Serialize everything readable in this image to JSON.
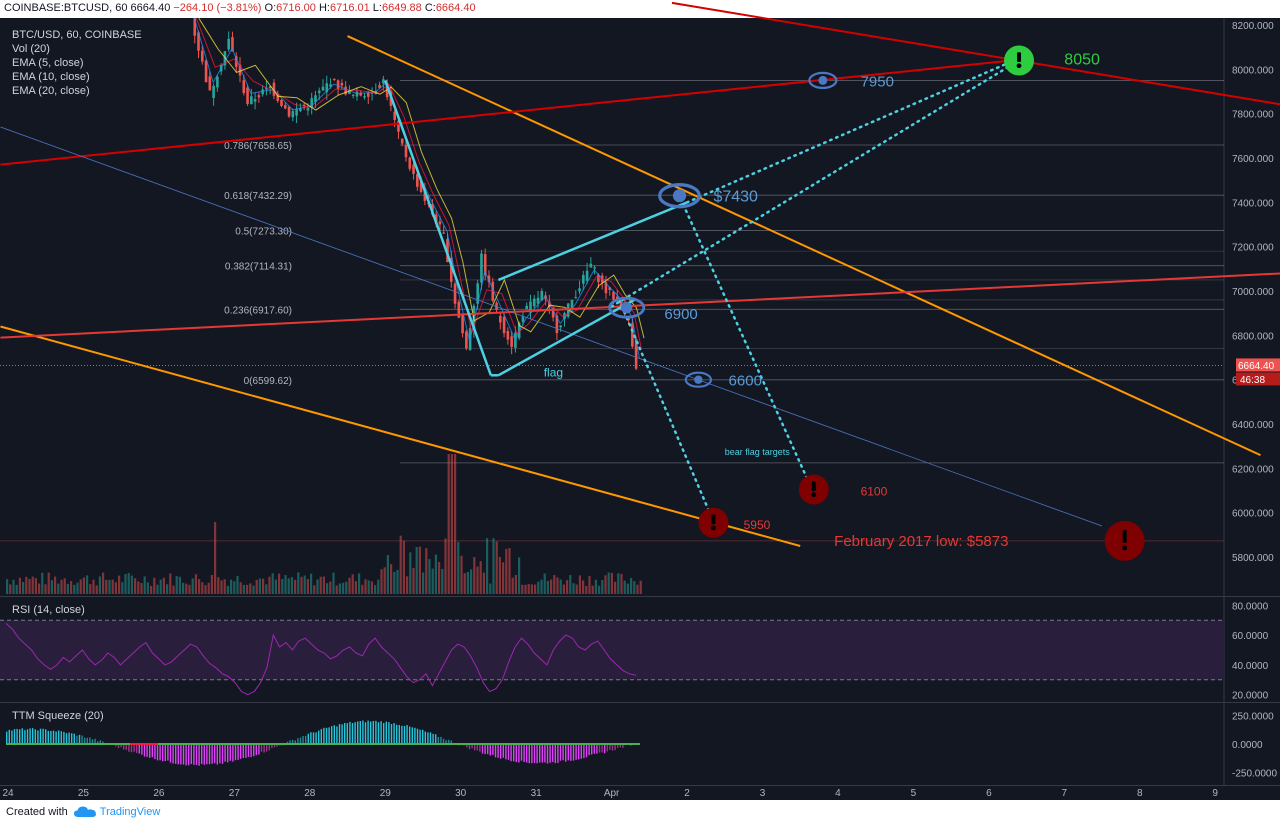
{
  "header": {
    "symbol": "COINBASE:BTCUSD, 60",
    "change": "−264.10 (−3.81%)",
    "o_label": "O:",
    "o_value": "6716.00",
    "h_label": "H:",
    "h_value": "6716.01",
    "l_label": "L:",
    "l_value": "6649.88",
    "c_label": "C:",
    "c_value": "6664.40",
    "last": "6664.40"
  },
  "legend": [
    "BTC/USD, 60, COINBASE",
    "Vol (20)",
    "EMA (5, close)",
    "EMA (10, close)",
    "EMA (20, close)"
  ],
  "footer": {
    "created_with": "Created with",
    "brand": "TradingView",
    "brand_icon": "tradingview-cloud-icon"
  },
  "colors": {
    "background": "#131722",
    "text": "#b2b5be",
    "bull": "#26a69a",
    "bear": "#ef5350",
    "orange": "#ff9800",
    "red_line": "#d50000",
    "cyan": "#4dd0e1",
    "blue_label": "#5b9bd5",
    "green_target": "#2ecc40",
    "rsi_line": "#9c27b0"
  },
  "chart_data": [
    {
      "type": "candlestick",
      "title": "BTC/USD, 60, COINBASE",
      "price_axis": {
        "ticks": [
          "8200.000",
          "8000.000",
          "7800.000",
          "7600.000",
          "7400.000",
          "7200.000",
          "7000.000",
          "6800.000",
          "6600.000",
          "6400.000",
          "6200.000",
          "6000.000",
          "5800.000"
        ],
        "last_price_label": "6664.40",
        "countdown_label": "46:38",
        "range": [
          5700,
          8250
        ]
      },
      "time_axis": {
        "ticks": [
          "24",
          "25",
          "26",
          "27",
          "28",
          "29",
          "30",
          "31",
          "Apr",
          "2",
          "3",
          "4",
          "5",
          "6",
          "7",
          "8",
          "9"
        ]
      },
      "price_path": [
        {
          "day": 26.45,
          "price": 8230
        },
        {
          "day": 26.7,
          "price": 7890
        },
        {
          "day": 26.95,
          "price": 8130
        },
        {
          "day": 27.2,
          "price": 7850
        },
        {
          "day": 27.5,
          "price": 7920
        },
        {
          "day": 27.75,
          "price": 7800
        },
        {
          "day": 28.0,
          "price": 7840
        },
        {
          "day": 28.3,
          "price": 7950
        },
        {
          "day": 28.6,
          "price": 7880
        },
        {
          "day": 28.85,
          "price": 7900
        },
        {
          "day": 29.0,
          "price": 7950
        },
        {
          "day": 29.2,
          "price": 7700
        },
        {
          "day": 29.4,
          "price": 7520
        },
        {
          "day": 29.6,
          "price": 7380
        },
        {
          "day": 29.8,
          "price": 7250
        },
        {
          "day": 29.95,
          "price": 6950
        },
        {
          "day": 30.1,
          "price": 6740
        },
        {
          "day": 30.3,
          "price": 7150
        },
        {
          "day": 30.5,
          "price": 6900
        },
        {
          "day": 30.7,
          "price": 6760
        },
        {
          "day": 30.85,
          "price": 6900
        },
        {
          "day": 31.1,
          "price": 6990
        },
        {
          "day": 31.3,
          "price": 6830
        },
        {
          "day": 31.5,
          "price": 6960
        },
        {
          "day": 31.75,
          "price": 7120
        },
        {
          "day": 31.95,
          "price": 7000
        },
        {
          "day": 32.1,
          "price": 6960
        },
        {
          "day": 32.25,
          "price": 6870
        },
        {
          "day": 32.35,
          "price": 6664
        }
      ],
      "fibonacci": [
        {
          "label": "0.786(7658.65)",
          "price": 7658.65
        },
        {
          "label": "0.618(7432.29)",
          "price": 7432.29
        },
        {
          "label": "0.5(7273.30)",
          "price": 7273.3
        },
        {
          "label": "0.382(7114.31)",
          "price": 7114.31
        },
        {
          "label": "0.236(6917.60)",
          "price": 6917.6
        },
        {
          "label": "0(6599.62)",
          "price": 6599.62
        }
      ],
      "horizontal_levels": [
        7950,
        6225,
        5873
      ],
      "trendlines": [
        {
          "name": "orange-upper",
          "from": {
            "day": 28.5,
            "price": 8150
          },
          "to": {
            "day": 9.6,
            "price": 6260
          }
        },
        {
          "name": "orange-lower",
          "from": {
            "day": 23.9,
            "price": 6840
          },
          "to": {
            "day": 3.5,
            "price": 5850
          }
        },
        {
          "name": "red-rising-upper",
          "from": {
            "day": 23.9,
            "price": 7570
          },
          "to": {
            "day": 6.3,
            "price": 8040
          }
        },
        {
          "name": "red-falling-upper",
          "from": {
            "day": 1.8,
            "price": 8300
          },
          "to": {
            "day": 9.9,
            "price": 7840
          }
        },
        {
          "name": "red-rising-lower",
          "from": {
            "day": 23.9,
            "price": 6790
          },
          "to": {
            "day": 9.9,
            "price": 7080
          }
        },
        {
          "name": "blue-thin",
          "from": {
            "day": 23.9,
            "price": 7740
          },
          "to": {
            "day": 7.5,
            "price": 5940
          }
        }
      ],
      "flag": {
        "label": "flag",
        "pole": [
          {
            "day": 29.0,
            "price": 7950
          },
          {
            "day": 30.4,
            "price": 6620
          }
        ],
        "upper": [
          {
            "day": 30.5,
            "price": 7050
          },
          {
            "day": 2.0,
            "price": 7400
          }
        ],
        "lower": [
          {
            "day": 30.5,
            "price": 6620
          },
          {
            "day": 32.3,
            "price": 6960
          }
        ]
      },
      "annotations": [
        {
          "text": "7950",
          "price": 7950,
          "kind": "eye"
        },
        {
          "text": "$7430",
          "price": 7430,
          "kind": "eye"
        },
        {
          "text": "6900",
          "price": 6900,
          "kind": "eye"
        },
        {
          "text": "6600",
          "price": 6600,
          "kind": "eye"
        },
        {
          "text": "8050",
          "price": 8050,
          "kind": "target-up"
        },
        {
          "text": "6100",
          "price": 6100,
          "kind": "target-down"
        },
        {
          "text": "5950",
          "price": 5950,
          "kind": "target-down"
        },
        {
          "text": "February 2017 low: $5873",
          "price": 5873,
          "kind": "target-down"
        },
        {
          "text": "bear flag targets",
          "kind": "note"
        }
      ]
    },
    {
      "type": "line",
      "title": "RSI (14, close)",
      "y_ticks": [
        "80.0000",
        "60.0000",
        "40.0000",
        "20.0000"
      ],
      "range": [
        15,
        85
      ],
      "band": [
        30,
        70
      ],
      "series": [
        {
          "values": [
            68,
            64,
            58,
            54,
            50,
            44,
            40,
            37,
            40,
            45,
            42,
            46,
            50,
            44,
            40,
            43,
            48,
            45,
            40,
            44,
            48,
            52,
            55,
            48,
            44,
            40,
            42,
            46,
            50,
            54,
            52,
            46,
            41,
            38,
            34,
            32,
            28,
            22,
            20,
            22,
            28,
            38,
            60,
            52,
            55,
            50,
            56,
            58,
            54,
            50,
            48,
            44,
            46,
            50,
            52,
            48,
            46,
            54,
            58,
            52,
            48,
            44,
            38,
            32,
            28,
            30,
            34,
            26,
            34,
            42,
            50,
            54,
            52,
            46,
            38,
            28,
            22,
            24,
            30,
            42,
            52,
            58,
            54,
            48,
            44,
            40,
            50,
            56,
            60,
            58,
            52,
            50,
            54,
            56,
            50,
            44,
            40,
            36,
            34,
            33
          ]
        }
      ]
    },
    {
      "type": "bar",
      "title": "TTM Squeeze (20)",
      "y_ticks": [
        "250.0000",
        "0.0000",
        "-250.0000"
      ],
      "range": [
        -350,
        350
      ]
    }
  ]
}
